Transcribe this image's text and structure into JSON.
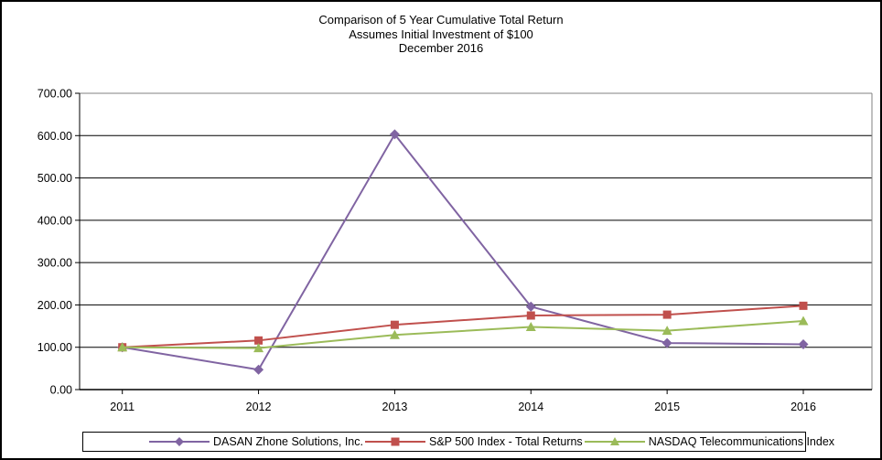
{
  "title": {
    "line1": "Comparison of 5 Year Cumulative Total Return",
    "line2": "Assumes Initial Investment of $100",
    "line3": "December 2016"
  },
  "chart_data": {
    "type": "line",
    "title": "Comparison of 5 Year Cumulative Total Return",
    "subtitle": "Assumes Initial Investment of $100",
    "date_label": "December 2016",
    "categories": [
      "2011",
      "2012",
      "2013",
      "2014",
      "2015",
      "2016"
    ],
    "series": [
      {
        "name": "DASAN Zhone Solutions, Inc.",
        "marker": "diamond",
        "color": "#8064A2",
        "values": [
          100,
          47,
          603,
          196,
          110,
          107
        ]
      },
      {
        "name": "S&P 500 Index - Total Returns",
        "marker": "square",
        "color": "#C0504D",
        "values": [
          100,
          116,
          153,
          175,
          177,
          198
        ]
      },
      {
        "name": "NASDAQ Telecommunications Index",
        "marker": "triangle",
        "color": "#9BBB59",
        "values": [
          100,
          98,
          129,
          148,
          139,
          162
        ]
      }
    ],
    "xlabel": "",
    "ylabel": "",
    "ylim": [
      0,
      700
    ],
    "ytick_step": 100,
    "ytick_labels": [
      "0.00",
      "100.00",
      "200.00",
      "300.00",
      "400.00",
      "500.00",
      "600.00",
      "700.00"
    ],
    "grid": "horizontal-black-lines",
    "legend_position": "bottom"
  },
  "colors": {
    "background": "#ffffff",
    "gridline": "#000000",
    "axis": "#000000",
    "plot_border": "#808080",
    "text": "#000000",
    "series_purple": "#8064A2",
    "series_red": "#C0504D",
    "series_green": "#9BBB59"
  }
}
